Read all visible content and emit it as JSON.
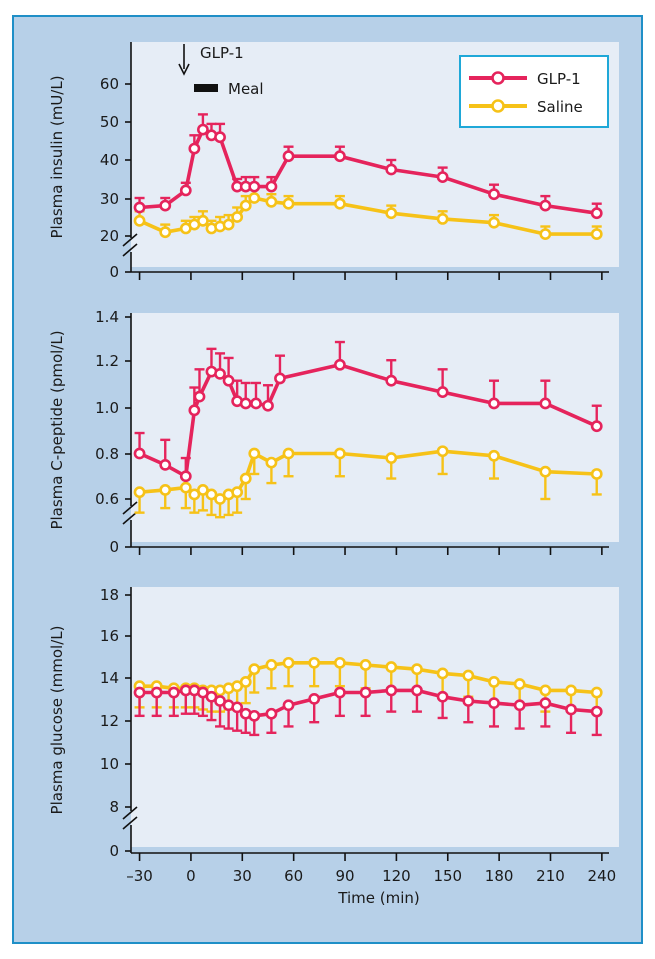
{
  "colors": {
    "glp1": "#e5245c",
    "saline": "#f6c218",
    "panel_bg": "#e6edf6",
    "frame_bg": "#b7d0e8",
    "frame_border": "#1f8fc7",
    "legend_border": "#1fa8d8"
  },
  "legend": {
    "glp1_label": "GLP-1",
    "saline_label": "Saline"
  },
  "annotations": {
    "glp1_arrow_label": "GLP-1",
    "meal_label": "Meal"
  },
  "xaxis": {
    "label": "Time (min)",
    "ticks": [
      -30,
      0,
      30,
      60,
      90,
      120,
      150,
      180,
      210,
      240
    ],
    "tick_labels": [
      "–30",
      "0",
      "30",
      "60",
      "90",
      "120",
      "150",
      "180",
      "210",
      "240"
    ],
    "range": [
      -35,
      243
    ]
  },
  "chart_data": [
    {
      "type": "line",
      "ylabel": "Plasma insulin (mU/L)",
      "axis_break": true,
      "ylim": [
        15,
        65
      ],
      "ytick_labels": [
        "0",
        "20",
        "30",
        "40",
        "50",
        "60"
      ],
      "series": [
        {
          "name": "GLP-1",
          "x": [
            -30,
            -15,
            -3,
            2,
            7,
            12,
            17,
            27,
            32,
            37,
            47,
            57,
            87,
            117,
            147,
            177,
            207,
            237
          ],
          "y": [
            27.5,
            28,
            32,
            43,
            48,
            46.5,
            46,
            33,
            33,
            33,
            33,
            41,
            41,
            37.5,
            35.5,
            31,
            28,
            26
          ],
          "err": [
            2.5,
            2,
            2,
            3.5,
            4,
            3,
            3.5,
            2,
            2.5,
            2.5,
            2.5,
            2.5,
            2.5,
            2.5,
            2.5,
            2.5,
            2.5,
            2.5
          ]
        },
        {
          "name": "Saline",
          "x": [
            -30,
            -15,
            -3,
            2,
            7,
            12,
            17,
            22,
            27,
            32,
            37,
            47,
            57,
            87,
            117,
            147,
            177,
            207,
            237
          ],
          "y": [
            24,
            21,
            22,
            23,
            24,
            22,
            22.5,
            23,
            25,
            28,
            30,
            29,
            28.5,
            28.5,
            26,
            24.5,
            23.5,
            20.5,
            20.5
          ],
          "err": [
            2.5,
            2,
            2,
            2,
            2.5,
            2,
            2.5,
            2.5,
            2.5,
            2.5,
            2.5,
            2,
            2,
            2,
            2,
            2,
            2,
            2,
            2
          ]
        }
      ]
    },
    {
      "type": "line",
      "ylabel": "Plasma C-peptide (pmol/L)",
      "axis_break": true,
      "ylim": [
        0.55,
        1.42
      ],
      "ytick_labels": [
        "0",
        "0.6",
        "0.8",
        "1.0",
        "1.2",
        "1.4"
      ],
      "series": [
        {
          "name": "GLP-1",
          "x": [
            -30,
            -15,
            -3,
            2,
            5,
            12,
            17,
            22,
            27,
            32,
            38,
            45,
            52,
            87,
            117,
            147,
            177,
            207,
            237
          ],
          "y": [
            0.8,
            0.75,
            0.7,
            0.99,
            1.05,
            1.16,
            1.15,
            1.12,
            1.03,
            1.02,
            1.02,
            1.01,
            1.13,
            1.19,
            1.12,
            1.07,
            1.02,
            1.02,
            0.92
          ],
          "err": [
            0.09,
            0.11,
            0.08,
            0.1,
            0.12,
            0.1,
            0.09,
            0.1,
            0.09,
            0.09,
            0.09,
            0.09,
            0.1,
            0.1,
            0.09,
            0.1,
            0.1,
            0.1,
            0.09
          ]
        },
        {
          "name": "Saline",
          "x": [
            -30,
            -15,
            -3,
            2,
            7,
            12,
            17,
            22,
            27,
            32,
            37,
            47,
            57,
            87,
            117,
            147,
            177,
            207,
            237
          ],
          "y": [
            0.63,
            0.64,
            0.65,
            0.62,
            0.64,
            0.62,
            0.6,
            0.62,
            0.63,
            0.69,
            0.8,
            0.76,
            0.8,
            0.8,
            0.78,
            0.81,
            0.79,
            0.72,
            0.71
          ],
          "err": [
            0.09,
            0.08,
            0.09,
            0.08,
            0.09,
            0.09,
            0.08,
            0.09,
            0.09,
            0.09,
            0.09,
            0.09,
            0.1,
            0.1,
            0.09,
            0.1,
            0.1,
            0.12,
            0.09
          ]
        }
      ]
    },
    {
      "type": "line",
      "ylabel": "Plasma glucose (mmol/L)",
      "axis_break": true,
      "ylim": [
        7,
        18.3
      ],
      "ytick_labels": [
        "0",
        "8",
        "10",
        "12",
        "14",
        "16",
        "18"
      ],
      "series": [
        {
          "name": "GLP-1",
          "x": [
            -30,
            -20,
            -10,
            -3,
            2,
            7,
            12,
            17,
            22,
            27,
            32,
            37,
            47,
            57,
            72,
            87,
            102,
            117,
            132,
            147,
            162,
            177,
            192,
            207,
            222,
            237
          ],
          "y": [
            13.4,
            13.4,
            13.4,
            13.5,
            13.5,
            13.4,
            13.2,
            13.0,
            12.8,
            12.7,
            12.4,
            12.3,
            12.4,
            12.8,
            13.1,
            13.4,
            13.4,
            13.5,
            13.5,
            13.2,
            13.0,
            12.9,
            12.8,
            12.9,
            12.6,
            12.5
          ],
          "err": [
            1.1,
            1.1,
            1.1,
            1.1,
            1.1,
            1.1,
            1.1,
            1.2,
            1.1,
            1.1,
            0.9,
            0.9,
            0.9,
            1.0,
            1.1,
            1.1,
            1.1,
            1.0,
            1.0,
            1.0,
            1.0,
            1.1,
            1.1,
            1.1,
            1.1,
            1.1
          ]
        },
        {
          "name": "Saline",
          "x": [
            -30,
            -20,
            -10,
            -3,
            2,
            7,
            12,
            17,
            22,
            27,
            32,
            37,
            47,
            57,
            72,
            87,
            102,
            117,
            132,
            147,
            162,
            177,
            192,
            207,
            222,
            237
          ],
          "y": [
            13.7,
            13.7,
            13.6,
            13.6,
            13.6,
            13.5,
            13.5,
            13.5,
            13.6,
            13.7,
            13.9,
            14.5,
            14.7,
            14.8,
            14.8,
            14.8,
            14.7,
            14.6,
            14.5,
            14.3,
            14.2,
            13.9,
            13.8,
            13.5,
            13.5,
            13.4
          ],
          "err": [
            1.0,
            1.0,
            0.9,
            0.9,
            0.9,
            0.9,
            1.0,
            1.0,
            1.0,
            1.0,
            1.0,
            1.1,
            1.1,
            1.1,
            1.1,
            1.1,
            1.1,
            1.0,
            1.0,
            1.0,
            1.0,
            1.0,
            1.0,
            1.0,
            1.0,
            1.0
          ]
        }
      ]
    }
  ]
}
